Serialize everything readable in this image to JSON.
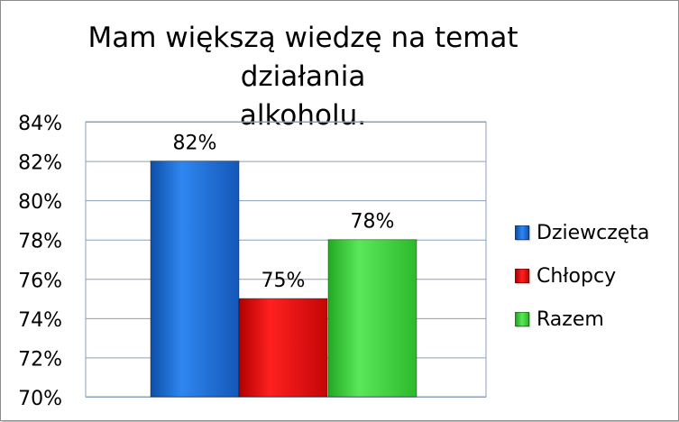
{
  "chart_data": {
    "type": "bar",
    "title": "Mam większą wiedzę na temat działania alkoholu.",
    "title_lines": [
      "Mam większą wiedzę na temat działania",
      "alkoholu."
    ],
    "categories": [
      "Dziewczęta",
      "Chłopcy",
      "Razem"
    ],
    "values": [
      82,
      75,
      78
    ],
    "data_labels": [
      "82%",
      "75%",
      "78%"
    ],
    "ylim": [
      70,
      84
    ],
    "yticks": [
      70,
      72,
      74,
      76,
      78,
      80,
      82,
      84
    ],
    "ytick_labels": [
      "70%",
      "72%",
      "74%",
      "76%",
      "78%",
      "80%",
      "82%",
      "84%"
    ],
    "xlabel": "",
    "ylabel": "",
    "grid": true,
    "legend_position": "right",
    "colors": [
      "#1e6fd9",
      "#e60d0d",
      "#3ed83e"
    ]
  }
}
